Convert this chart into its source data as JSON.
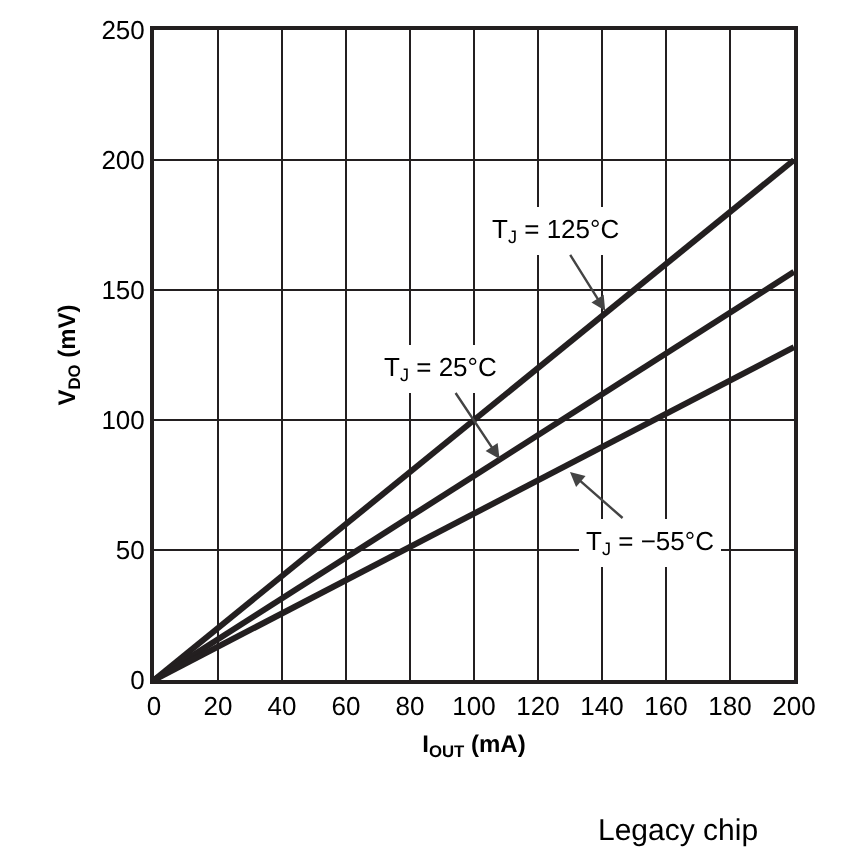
{
  "chart_data": {
    "type": "line",
    "xlabel": "I$_{OUT}$ (mA)",
    "ylabel": "V$_{DO}$ (mV)",
    "x": [
      0,
      200
    ],
    "series": [
      {
        "color": "#231f20",
        "values": [
          0,
          200
        ]
      },
      {
        "color": "#231f20",
        "values": [
          0,
          157
        ]
      },
      {
        "color": "#231f20",
        "values": [
          0,
          128
        ]
      }
    ],
    "xlim": [
      0,
      200
    ],
    "xticks": [
      0,
      20,
      40,
      60,
      80,
      100,
      120,
      140,
      160,
      180,
      200
    ],
    "ylim": [
      0,
      250
    ],
    "yticks": [
      0,
      50,
      100,
      150,
      200,
      250
    ],
    "grid": true,
    "marker": "none",
    "line_style": "solid",
    "annotations": [
      {
        "text": "T$_{J}$ = 125°C",
        "x": 141,
        "y": 142
      },
      {
        "text": "T$_{J}$ = 25°C",
        "x": 108,
        "y": 85
      },
      {
        "text": "T$_{J}$ = −55°C",
        "x": 130,
        "y": 80
      },
      "Legacy chip"
    ]
  }
}
